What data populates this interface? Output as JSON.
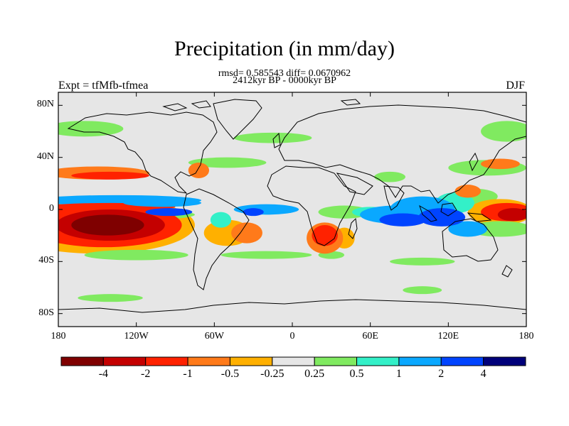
{
  "title": "Precipitation (in mm/day)",
  "stats": "rmsd= 0.585543 diff= 0.0670962",
  "period": "2412kyr BP - 0000kyr BP",
  "experiment": "Expt = tfMfb-tfmea",
  "season": "DJF",
  "map": {
    "projection": "cylindrical equidistant",
    "lon_range": [
      -180,
      180
    ],
    "lat_range": [
      -90,
      90
    ],
    "background_color": "#e6e6e6",
    "y_ticks": [
      {
        "lat": 80,
        "label": "80N"
      },
      {
        "lat": 40,
        "label": "40N"
      },
      {
        "lat": 0,
        "label": "0"
      },
      {
        "lat": -40,
        "label": "40S"
      },
      {
        "lat": -80,
        "label": "80S"
      }
    ],
    "x_ticks": [
      {
        "lon": -180,
        "label": "180"
      },
      {
        "lon": -120,
        "label": "120W"
      },
      {
        "lon": -60,
        "label": "60W"
      },
      {
        "lon": 0,
        "label": "0"
      },
      {
        "lon": 60,
        "label": "60E"
      },
      {
        "lon": 120,
        "label": "120E"
      },
      {
        "lon": 180,
        "label": "180"
      }
    ]
  },
  "colorbar": {
    "colors": [
      "#7f0000",
      "#c40000",
      "#ff2200",
      "#ff7a1a",
      "#ffb000",
      "#e6e6e6",
      "#80ea60",
      "#33f0c8",
      "#0aa8ff",
      "#0044ff",
      "#00007a"
    ],
    "labels": [
      "-4",
      "-2",
      "-1",
      "-0.5",
      "-0.25",
      "0.25",
      "0.5",
      "1",
      "2",
      "4"
    ]
  },
  "anomalies": [
    {
      "lon": -142,
      "lat": -12,
      "rx": 28,
      "ry": 8,
      "level": 0
    },
    {
      "lon": -140,
      "lat": -12,
      "rx": 42,
      "ry": 12,
      "level": 1
    },
    {
      "lon": -145,
      "lat": -12,
      "rx": 60,
      "ry": 17,
      "level": 2
    },
    {
      "lon": -150,
      "lat": -12,
      "rx": 75,
      "ry": 22,
      "level": 4
    },
    {
      "lon": -145,
      "lat": -4,
      "rx": 70,
      "ry": 5,
      "level": 6
    },
    {
      "lon": -135,
      "lat": 7,
      "rx": 65,
      "ry": 4,
      "level": 8
    },
    {
      "lon": -140,
      "lat": 2,
      "rx": 50,
      "ry": 3,
      "level": 2
    },
    {
      "lon": -150,
      "lat": 28,
      "rx": 40,
      "ry": 5,
      "level": 3
    },
    {
      "lon": -140,
      "lat": 26,
      "rx": 30,
      "ry": 3,
      "level": 2
    },
    {
      "lon": -160,
      "lat": 62,
      "rx": 30,
      "ry": 6,
      "level": 6
    },
    {
      "lon": -95,
      "lat": -2,
      "rx": 18,
      "ry": 3,
      "level": 9
    },
    {
      "lon": -100,
      "lat": 5,
      "rx": 30,
      "ry": 3,
      "level": 8
    },
    {
      "lon": -55,
      "lat": -8,
      "rx": 8,
      "ry": 6,
      "level": 7
    },
    {
      "lon": -50,
      "lat": -18,
      "rx": 18,
      "ry": 10,
      "level": 4
    },
    {
      "lon": -35,
      "lat": -18,
      "rx": 12,
      "ry": 8,
      "level": 3
    },
    {
      "lon": -20,
      "lat": 0,
      "rx": 25,
      "ry": 4,
      "level": 8
    },
    {
      "lon": -30,
      "lat": -2,
      "rx": 8,
      "ry": 3,
      "level": 9
    },
    {
      "lon": -50,
      "lat": 36,
      "rx": 30,
      "ry": 4,
      "level": 6
    },
    {
      "lon": -72,
      "lat": 30,
      "rx": 8,
      "ry": 6,
      "level": 3
    },
    {
      "lon": -15,
      "lat": 55,
      "rx": 30,
      "ry": 4,
      "level": 6
    },
    {
      "lon": 25,
      "lat": -22,
      "rx": 14,
      "ry": 12,
      "level": 3
    },
    {
      "lon": 25,
      "lat": -20,
      "rx": 10,
      "ry": 8,
      "level": 2
    },
    {
      "lon": 40,
      "lat": -22,
      "rx": 8,
      "ry": 8,
      "level": 4
    },
    {
      "lon": 40,
      "lat": -2,
      "rx": 20,
      "ry": 5,
      "level": 6
    },
    {
      "lon": 60,
      "lat": -2,
      "rx": 14,
      "ry": 4,
      "level": 7
    },
    {
      "lon": 80,
      "lat": -4,
      "rx": 28,
      "ry": 7,
      "level": 8
    },
    {
      "lon": 85,
      "lat": -8,
      "rx": 18,
      "ry": 5,
      "level": 9
    },
    {
      "lon": 100,
      "lat": 0,
      "rx": 25,
      "ry": 10,
      "level": 8
    },
    {
      "lon": 115,
      "lat": -6,
      "rx": 18,
      "ry": 7,
      "level": 9
    },
    {
      "lon": 125,
      "lat": 5,
      "rx": 15,
      "ry": 8,
      "level": 7
    },
    {
      "lon": 140,
      "lat": 10,
      "rx": 18,
      "ry": 6,
      "level": 6
    },
    {
      "lon": 135,
      "lat": 14,
      "rx": 10,
      "ry": 5,
      "level": 3
    },
    {
      "lon": 160,
      "lat": -2,
      "rx": 25,
      "ry": 10,
      "level": 4
    },
    {
      "lon": 165,
      "lat": -2,
      "rx": 20,
      "ry": 7,
      "level": 2
    },
    {
      "lon": 170,
      "lat": -4,
      "rx": 12,
      "ry": 5,
      "level": 1
    },
    {
      "lon": 160,
      "lat": -15,
      "rx": 25,
      "ry": 6,
      "level": 6
    },
    {
      "lon": 135,
      "lat": -15,
      "rx": 15,
      "ry": 6,
      "level": 8
    },
    {
      "lon": 150,
      "lat": 32,
      "rx": 30,
      "ry": 6,
      "level": 6
    },
    {
      "lon": 160,
      "lat": 35,
      "rx": 15,
      "ry": 4,
      "level": 3
    },
    {
      "lon": 165,
      "lat": 60,
      "rx": 20,
      "ry": 8,
      "level": 6
    },
    {
      "lon": -20,
      "lat": -35,
      "rx": 35,
      "ry": 3,
      "level": 6
    },
    {
      "lon": -120,
      "lat": -35,
      "rx": 40,
      "ry": 4,
      "level": 6
    },
    {
      "lon": 100,
      "lat": -40,
      "rx": 25,
      "ry": 3,
      "level": 6
    },
    {
      "lon": -140,
      "lat": -68,
      "rx": 25,
      "ry": 3,
      "level": 6
    },
    {
      "lon": 100,
      "lat": -62,
      "rx": 15,
      "ry": 3,
      "level": 6
    },
    {
      "lon": 30,
      "lat": -35,
      "rx": 10,
      "ry": 3,
      "level": 6
    },
    {
      "lon": 75,
      "lat": 25,
      "rx": 12,
      "ry": 4,
      "level": 6
    }
  ]
}
